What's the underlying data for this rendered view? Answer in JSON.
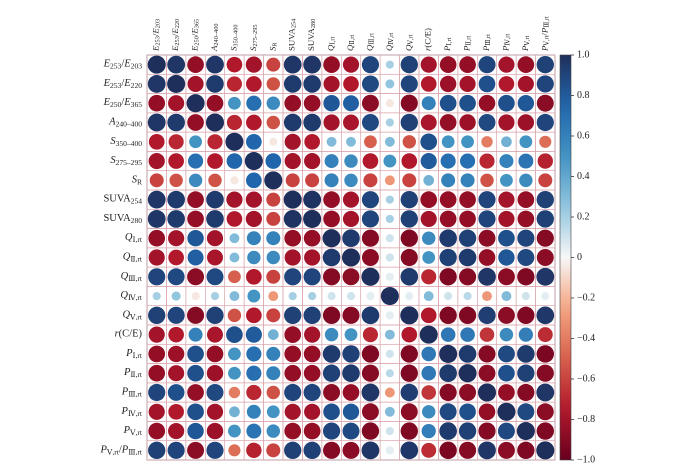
{
  "chart_data": {
    "type": "heatmap",
    "marker": "circle",
    "labels": [
      {
        "base": "E",
        "sub": "253",
        "mid": "/",
        "base2": "E",
        "sub2": "203",
        "italic": true
      },
      {
        "base": "E",
        "sub": "253",
        "mid": "/",
        "base2": "E",
        "sub2": "220",
        "italic": true
      },
      {
        "base": "E",
        "sub": "250",
        "mid": "/",
        "base2": "E",
        "sub2": "365",
        "italic": true
      },
      {
        "base": "A",
        "sub": "240–400",
        "italic": true
      },
      {
        "base": "S",
        "sub": "350–400",
        "italic": true
      },
      {
        "base": "S",
        "sub": "275–295",
        "italic": true
      },
      {
        "base": "S",
        "sub": "R",
        "italic": true
      },
      {
        "base": "SUVA",
        "sub": "254",
        "italic": false
      },
      {
        "base": "SUVA",
        "sub": "280",
        "italic": false
      },
      {
        "base": "Q",
        "sub": "Ⅰ,rt",
        "italic": true
      },
      {
        "base": "Q",
        "sub": "Ⅱ,rt",
        "italic": true
      },
      {
        "base": "Q",
        "sub": "Ⅲ,rt",
        "italic": true
      },
      {
        "base": "Q",
        "sub": "Ⅳ,rt",
        "italic": true
      },
      {
        "base": "Q",
        "sub": "Ⅴ,rt",
        "italic": true
      },
      {
        "base": "r",
        "tail": "(C/E)",
        "italic": true
      },
      {
        "base": "P",
        "sub": "Ⅰ,rt",
        "italic": true
      },
      {
        "base": "P",
        "sub": "Ⅱ,rt",
        "italic": true
      },
      {
        "base": "P",
        "sub": "Ⅲ,rt",
        "italic": true
      },
      {
        "base": "P",
        "sub": "Ⅳ,rt",
        "italic": true
      },
      {
        "base": "P",
        "sub": "Ⅴ,rt",
        "italic": true
      },
      {
        "base": "P",
        "sub": "Ⅴ,rt",
        "mid": "/",
        "base2": "P",
        "sub2": "Ⅲ,rt",
        "italic": true
      }
    ],
    "matrix": [
      [
        1,
        0.97,
        -0.85,
        0.97,
        -0.75,
        -0.8,
        -0.6,
        0.97,
        0.97,
        -0.85,
        -0.8,
        0.9,
        0.2,
        0.92,
        -0.8,
        -0.85,
        -0.85,
        0.9,
        -0.8,
        -0.85,
        0.92
      ],
      [
        0.97,
        1,
        -0.8,
        0.95,
        -0.7,
        -0.75,
        -0.55,
        0.95,
        0.95,
        -0.8,
        -0.75,
        0.88,
        0.25,
        0.9,
        -0.75,
        -0.82,
        -0.8,
        0.85,
        -0.75,
        -0.8,
        0.9
      ],
      [
        -0.85,
        -0.8,
        1,
        -0.85,
        0.5,
        0.7,
        0.55,
        -0.85,
        -0.85,
        0.82,
        0.78,
        -0.88,
        -0.05,
        -0.9,
        0.6,
        0.85,
        0.85,
        -0.85,
        0.85,
        0.82,
        -0.88
      ],
      [
        0.97,
        0.95,
        -0.85,
        1,
        -0.7,
        -0.75,
        -0.55,
        0.95,
        0.95,
        -0.8,
        -0.78,
        0.88,
        0.2,
        0.92,
        -0.78,
        -0.85,
        -0.82,
        0.88,
        -0.8,
        -0.82,
        0.9
      ],
      [
        -0.75,
        -0.7,
        0.5,
        -0.7,
        1,
        0.75,
        -0.05,
        -0.8,
        -0.75,
        0.3,
        0.3,
        -0.5,
        0.3,
        -0.55,
        0.85,
        0.5,
        0.5,
        -0.4,
        0.35,
        0.5,
        -0.45
      ],
      [
        -0.8,
        -0.75,
        0.7,
        -0.75,
        0.75,
        1,
        0.75,
        -0.8,
        -0.8,
        0.6,
        0.55,
        -0.75,
        0.5,
        -0.75,
        0.8,
        0.7,
        0.7,
        -0.7,
        0.6,
        0.68,
        -0.72
      ],
      [
        -0.6,
        -0.55,
        0.55,
        -0.55,
        -0.05,
        0.75,
        1,
        -0.6,
        -0.6,
        0.6,
        0.55,
        -0.6,
        -0.3,
        -0.6,
        0.35,
        0.6,
        0.6,
        -0.55,
        0.5,
        0.55,
        -0.6
      ],
      [
        0.97,
        0.95,
        -0.85,
        0.95,
        -0.8,
        -0.8,
        -0.6,
        1,
        0.98,
        -0.85,
        -0.8,
        0.9,
        0.2,
        0.92,
        -0.85,
        -0.85,
        -0.85,
        0.9,
        -0.8,
        -0.85,
        0.92
      ],
      [
        0.97,
        0.95,
        -0.85,
        0.95,
        -0.75,
        -0.8,
        -0.6,
        0.98,
        1,
        -0.85,
        -0.8,
        0.9,
        0.2,
        0.92,
        -0.8,
        -0.85,
        -0.85,
        0.9,
        -0.8,
        -0.85,
        0.92
      ],
      [
        -0.85,
        -0.8,
        0.82,
        -0.8,
        0.3,
        0.6,
        0.6,
        -0.85,
        -0.85,
        1,
        0.95,
        -0.9,
        0.1,
        -0.92,
        0.55,
        0.95,
        0.92,
        -0.88,
        0.85,
        0.9,
        -0.9
      ],
      [
        -0.8,
        -0.75,
        0.78,
        -0.78,
        0.3,
        0.55,
        0.55,
        -0.8,
        -0.8,
        0.95,
        1,
        -0.88,
        0.1,
        -0.9,
        0.5,
        0.92,
        0.95,
        -0.85,
        0.82,
        0.88,
        -0.88
      ],
      [
        0.9,
        0.88,
        -0.88,
        0.88,
        -0.5,
        -0.75,
        -0.6,
        0.9,
        0.9,
        -0.9,
        -0.88,
        1,
        0.05,
        0.95,
        -0.7,
        -0.92,
        -0.9,
        0.97,
        -0.88,
        -0.92,
        0.97
      ],
      [
        0.2,
        0.25,
        -0.05,
        0.2,
        0.3,
        0.5,
        -0.3,
        0.2,
        0.2,
        0.1,
        0.1,
        0.05,
        1,
        0.05,
        0.3,
        0.1,
        0.15,
        -0.3,
        0.3,
        0.1,
        0.05
      ],
      [
        0.92,
        0.9,
        -0.9,
        0.92,
        -0.55,
        -0.75,
        -0.6,
        0.92,
        0.92,
        -0.92,
        -0.9,
        0.95,
        0.05,
        1,
        -0.75,
        -0.92,
        -0.92,
        0.93,
        -0.88,
        -0.92,
        0.96
      ],
      [
        -0.8,
        -0.75,
        0.6,
        -0.78,
        0.85,
        0.8,
        0.35,
        -0.85,
        -0.8,
        0.55,
        0.5,
        -0.7,
        0.3,
        -0.75,
        1,
        0.65,
        0.65,
        -0.65,
        0.55,
        0.62,
        -0.68
      ],
      [
        -0.85,
        -0.82,
        0.85,
        -0.85,
        0.5,
        0.7,
        0.6,
        -0.85,
        -0.85,
        0.95,
        0.92,
        -0.92,
        0.1,
        -0.92,
        0.65,
        1,
        0.95,
        -0.9,
        0.88,
        0.95,
        -0.93
      ],
      [
        -0.85,
        -0.8,
        0.85,
        -0.82,
        0.5,
        0.7,
        0.6,
        -0.85,
        -0.85,
        0.92,
        0.95,
        -0.9,
        0.15,
        -0.92,
        0.65,
        0.95,
        1,
        -0.88,
        0.85,
        0.92,
        -0.9
      ],
      [
        0.9,
        0.85,
        -0.85,
        0.88,
        -0.4,
        -0.7,
        -0.55,
        0.9,
        0.9,
        -0.88,
        -0.85,
        0.97,
        -0.3,
        0.93,
        -0.65,
        -0.9,
        -0.88,
        1,
        -0.85,
        -0.9,
        0.97
      ],
      [
        -0.8,
        -0.75,
        0.85,
        -0.8,
        0.35,
        0.6,
        0.5,
        -0.8,
        -0.8,
        0.85,
        0.82,
        -0.88,
        0.3,
        -0.88,
        0.55,
        0.88,
        0.85,
        -0.85,
        1,
        0.88,
        -0.88
      ],
      [
        -0.85,
        -0.8,
        0.82,
        -0.82,
        0.5,
        0.68,
        0.55,
        -0.85,
        -0.85,
        0.9,
        0.88,
        -0.92,
        0.1,
        -0.92,
        0.62,
        0.95,
        0.92,
        -0.9,
        0.88,
        1,
        -0.92
      ],
      [
        0.92,
        0.9,
        -0.88,
        0.9,
        -0.45,
        -0.72,
        -0.6,
        0.92,
        0.92,
        -0.9,
        -0.88,
        0.97,
        0.05,
        0.96,
        -0.68,
        -0.93,
        -0.9,
        0.97,
        -0.88,
        -0.92,
        1
      ]
    ],
    "colorbar": {
      "range": [
        -1.0,
        1.0
      ],
      "ticks": [
        "1.0",
        "0.8",
        "0.6",
        "0.4",
        "0.2",
        "0",
        "−0.2",
        "−0.4",
        "−0.6",
        "−0.8",
        "−1.0"
      ]
    },
    "colors": {
      "negative": "#67001f",
      "neutral": "#f7f7f7",
      "positive": "#1f2f5c",
      "cell_border": "#d9a0a8"
    },
    "grid": true
  }
}
